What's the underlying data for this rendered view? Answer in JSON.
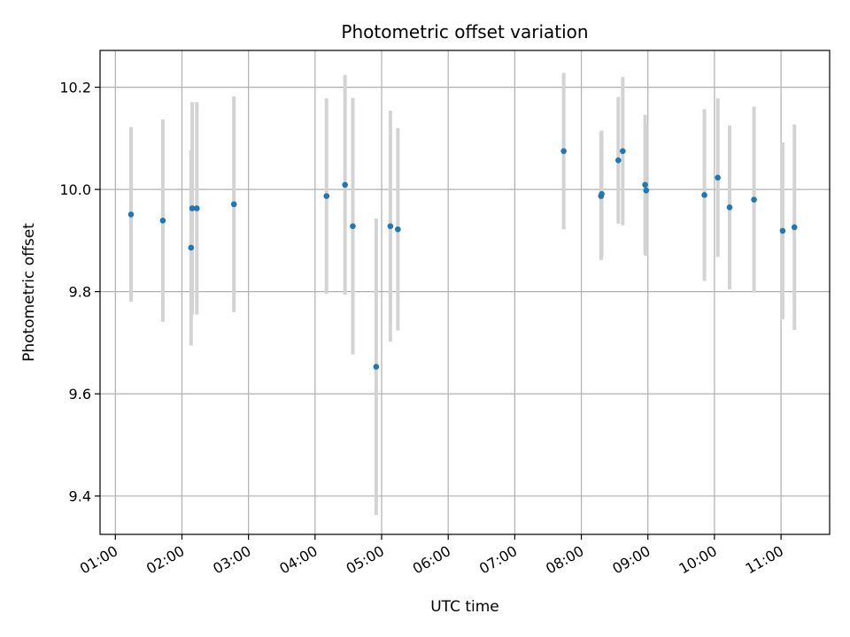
{
  "chart_data": {
    "type": "scatter",
    "title": "Photometric offset variation",
    "xlabel": "UTC time",
    "ylabel": "Photometric offset",
    "x_unit": "hours UTC",
    "xlim": [
      0.77,
      11.73
    ],
    "ylim": [
      9.325,
      10.272
    ],
    "x_ticks": [
      {
        "value": 1,
        "label": "01:00"
      },
      {
        "value": 2,
        "label": "02:00"
      },
      {
        "value": 3,
        "label": "03:00"
      },
      {
        "value": 4,
        "label": "04:00"
      },
      {
        "value": 5,
        "label": "05:00"
      },
      {
        "value": 6,
        "label": "06:00"
      },
      {
        "value": 7,
        "label": "07:00"
      },
      {
        "value": 8,
        "label": "08:00"
      },
      {
        "value": 9,
        "label": "09:00"
      },
      {
        "value": 10,
        "label": "10:00"
      },
      {
        "value": 11,
        "label": "11:00"
      }
    ],
    "y_ticks": [
      {
        "value": 9.4,
        "label": "9.4"
      },
      {
        "value": 9.6,
        "label": "9.6"
      },
      {
        "value": 9.8,
        "label": "9.8"
      },
      {
        "value": 10.0,
        "label": "10.0"
      },
      {
        "value": 10.2,
        "label": "10.2"
      }
    ],
    "grid": true,
    "marker_color": "#1f77b4",
    "errorbar_color": "#d3d3d3",
    "points": [
      {
        "time": "01:14",
        "x": 1.235,
        "y": 9.951,
        "err": 0.171
      },
      {
        "time": "01:43",
        "x": 1.713,
        "y": 9.939,
        "err": 0.198
      },
      {
        "time": "02:08",
        "x": 2.137,
        "y": 9.886,
        "err": 0.191
      },
      {
        "time": "02:09",
        "x": 2.154,
        "y": 9.963,
        "err": 0.208
      },
      {
        "time": "02:13",
        "x": 2.224,
        "y": 9.963,
        "err": 0.208
      },
      {
        "time": "02:47",
        "x": 2.781,
        "y": 9.971,
        "err": 0.211
      },
      {
        "time": "04:10",
        "x": 4.172,
        "y": 9.987,
        "err": 0.191
      },
      {
        "time": "04:27",
        "x": 4.45,
        "y": 10.009,
        "err": 0.215
      },
      {
        "time": "04:34",
        "x": 4.567,
        "y": 9.928,
        "err": 0.251
      },
      {
        "time": "04:55",
        "x": 4.918,
        "y": 9.653,
        "err": 0.29
      },
      {
        "time": "05:08",
        "x": 5.131,
        "y": 9.928,
        "err": 0.226
      },
      {
        "time": "05:15",
        "x": 5.244,
        "y": 9.922,
        "err": 0.198
      },
      {
        "time": "07:44",
        "x": 7.735,
        "y": 10.075,
        "err": 0.153
      },
      {
        "time": "08:17",
        "x": 8.296,
        "y": 9.987,
        "err": 0.125
      },
      {
        "time": "08:18",
        "x": 8.306,
        "y": 9.991,
        "err": 0.124
      },
      {
        "time": "08:33",
        "x": 8.555,
        "y": 10.057,
        "err": 0.124
      },
      {
        "time": "08:37",
        "x": 8.622,
        "y": 10.075,
        "err": 0.145
      },
      {
        "time": "08:57",
        "x": 8.958,
        "y": 10.009,
        "err": 0.137
      },
      {
        "time": "08:58",
        "x": 8.974,
        "y": 9.998,
        "err": 0.128
      },
      {
        "time": "09:51",
        "x": 9.849,
        "y": 9.989,
        "err": 0.168
      },
      {
        "time": "10:03",
        "x": 10.05,
        "y": 10.023,
        "err": 0.155
      },
      {
        "time": "10:13",
        "x": 10.227,
        "y": 9.965,
        "err": 0.16
      },
      {
        "time": "10:35",
        "x": 10.594,
        "y": 9.98,
        "err": 0.182
      },
      {
        "time": "11:01",
        "x": 11.024,
        "y": 9.919,
        "err": 0.173
      },
      {
        "time": "11:12",
        "x": 11.201,
        "y": 9.926,
        "err": 0.201
      }
    ]
  }
}
